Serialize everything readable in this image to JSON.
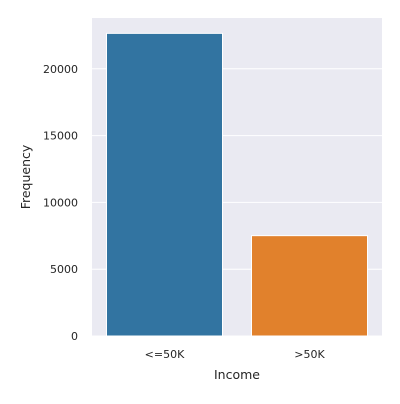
{
  "chart_data": {
    "type": "bar",
    "categories": [
      "<=50K",
      ">50K"
    ],
    "values": [
      22650,
      7510
    ],
    "colors": [
      "#3274a1",
      "#e1812c"
    ],
    "xlabel": "Income",
    "ylabel": "Frequency",
    "ylim": [
      0,
      23800
    ],
    "yticks": [
      "0",
      "5000",
      "10000",
      "15000",
      "20000"
    ],
    "grid": true,
    "background": "#eaeaf2"
  }
}
